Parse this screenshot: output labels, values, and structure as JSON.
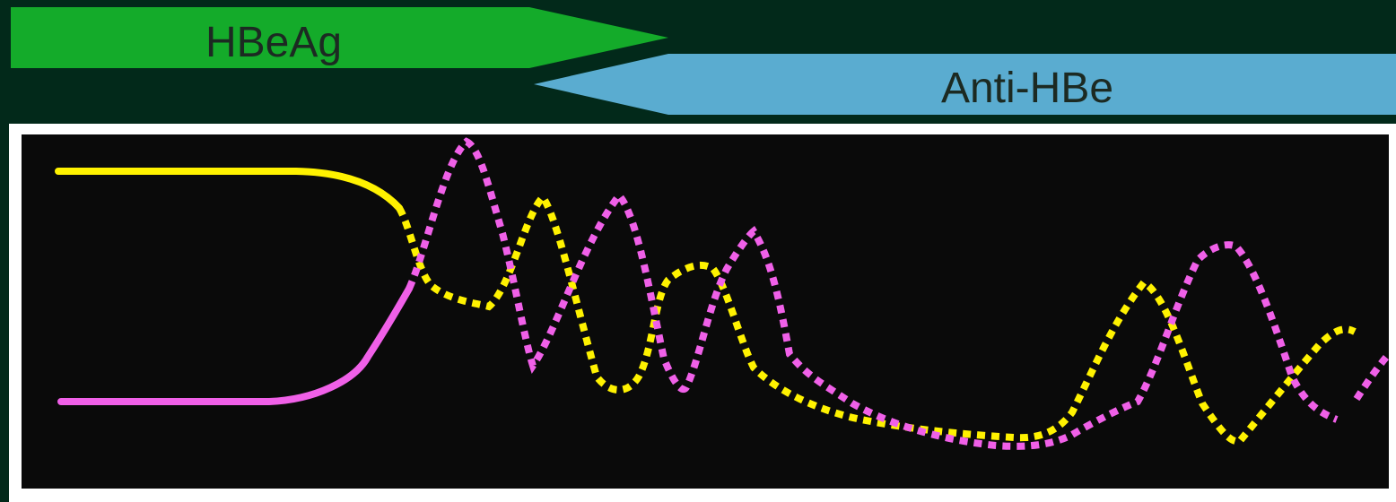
{
  "banner": {
    "hbeag_label": "HBeAg",
    "anti_hbe_label": "Anti-HBe",
    "hbeag_color": "#14ab2a",
    "anti_hbe_color": "#5aacd0"
  },
  "plot": {
    "background_color": "#0a0a0a",
    "frame_color": "#ffffff",
    "series": [
      {
        "id": "hbeag",
        "color": "#fff200",
        "style": "solid then dotted"
      },
      {
        "id": "anti-hbe",
        "color": "#f060e8",
        "style": "solid then dotted"
      }
    ]
  }
}
